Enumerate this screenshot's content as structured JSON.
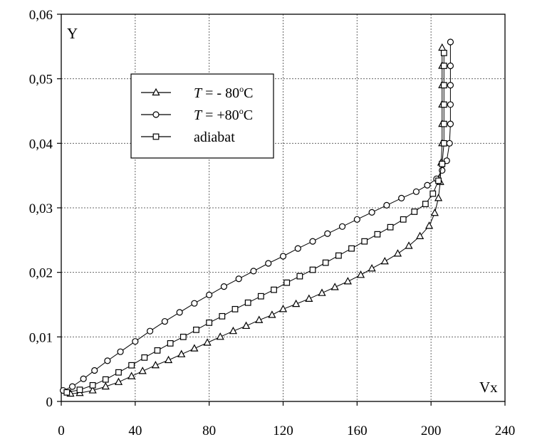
{
  "chart_data": {
    "type": "scatter",
    "title": "",
    "xlabel": "Vx",
    "ylabel": "Y",
    "xlim": [
      0,
      240
    ],
    "ylim": [
      0,
      0.06
    ],
    "x_ticks": [
      0,
      40,
      80,
      120,
      160,
      200,
      240
    ],
    "y_ticks": [
      0,
      0.01,
      0.02,
      0.03,
      0.04,
      0.05,
      0.06
    ],
    "x_tick_labels": [
      "0",
      "40",
      "80",
      "120",
      "160",
      "200",
      "240"
    ],
    "y_tick_labels": [
      "0",
      "0,01",
      "0,02",
      "0,03",
      "0,04",
      "0,05",
      "0,06"
    ],
    "grid": true,
    "legend_position": "upper-left",
    "series": [
      {
        "name": "T = - 80°C",
        "legend_italic": "T",
        "legend_rest": " = - 80",
        "legend_degree": "o",
        "legend_unit": "C",
        "marker": "triangle",
        "points": [
          [
            5,
            0.0012
          ],
          [
            10,
            0.0013
          ],
          [
            17,
            0.0017
          ],
          [
            24,
            0.0023
          ],
          [
            31,
            0.003
          ],
          [
            38,
            0.0039
          ],
          [
            44,
            0.0047
          ],
          [
            51,
            0.0056
          ],
          [
            58,
            0.0064
          ],
          [
            65,
            0.0073
          ],
          [
            72,
            0.0082
          ],
          [
            79,
            0.0091
          ],
          [
            86,
            0.01
          ],
          [
            93,
            0.0109
          ],
          [
            100,
            0.0117
          ],
          [
            107,
            0.0126
          ],
          [
            114,
            0.0134
          ],
          [
            120,
            0.0143
          ],
          [
            127,
            0.0151
          ],
          [
            134,
            0.0159
          ],
          [
            141,
            0.0168
          ],
          [
            148,
            0.0177
          ],
          [
            155,
            0.0186
          ],
          [
            162,
            0.0196
          ],
          [
            168,
            0.0206
          ],
          [
            175,
            0.0217
          ],
          [
            182,
            0.0229
          ],
          [
            188,
            0.0241
          ],
          [
            194,
            0.0256
          ],
          [
            199,
            0.0272
          ],
          [
            202,
            0.0292
          ],
          [
            204,
            0.0315
          ],
          [
            205,
            0.034
          ],
          [
            205.5,
            0.037
          ],
          [
            206,
            0.04
          ],
          [
            206,
            0.043
          ],
          [
            206,
            0.046
          ],
          [
            206,
            0.049
          ],
          [
            206,
            0.052
          ],
          [
            206,
            0.0548
          ]
        ]
      },
      {
        "name": "T = +80°C",
        "legend_italic": "T",
        "legend_rest": " = +80",
        "legend_degree": "o",
        "legend_unit": "C",
        "marker": "circle",
        "points": [
          [
            1,
            0.0017
          ],
          [
            6,
            0.0023
          ],
          [
            12,
            0.0035
          ],
          [
            18,
            0.0048
          ],
          [
            25,
            0.0063
          ],
          [
            32,
            0.0077
          ],
          [
            40,
            0.0093
          ],
          [
            48,
            0.0109
          ],
          [
            56,
            0.0124
          ],
          [
            64,
            0.0138
          ],
          [
            72,
            0.0152
          ],
          [
            80,
            0.0165
          ],
          [
            88,
            0.0178
          ],
          [
            96,
            0.019
          ],
          [
            104,
            0.0202
          ],
          [
            112,
            0.0214
          ],
          [
            120,
            0.0225
          ],
          [
            128,
            0.0237
          ],
          [
            136,
            0.0248
          ],
          [
            144,
            0.026
          ],
          [
            152,
            0.0271
          ],
          [
            160,
            0.0282
          ],
          [
            168,
            0.0293
          ],
          [
            176,
            0.0304
          ],
          [
            184,
            0.0315
          ],
          [
            192,
            0.0325
          ],
          [
            198,
            0.0335
          ],
          [
            203,
            0.0345
          ],
          [
            206,
            0.0358
          ],
          [
            208.5,
            0.0373
          ],
          [
            210,
            0.04
          ],
          [
            210.5,
            0.043
          ],
          [
            210.5,
            0.046
          ],
          [
            210.5,
            0.049
          ],
          [
            210.5,
            0.052
          ],
          [
            210.5,
            0.0557
          ]
        ]
      },
      {
        "name": "adiabat",
        "legend_italic": "",
        "legend_rest": "adiabat",
        "legend_degree": "",
        "legend_unit": "",
        "marker": "square",
        "points": [
          [
            3,
            0.0014
          ],
          [
            10,
            0.0018
          ],
          [
            17,
            0.0025
          ],
          [
            24,
            0.0034
          ],
          [
            31,
            0.0045
          ],
          [
            38,
            0.0056
          ],
          [
            45,
            0.0068
          ],
          [
            52,
            0.0079
          ],
          [
            59,
            0.009
          ],
          [
            66,
            0.01
          ],
          [
            73,
            0.0111
          ],
          [
            80,
            0.0122
          ],
          [
            87,
            0.0132
          ],
          [
            94,
            0.0143
          ],
          [
            101,
            0.0153
          ],
          [
            108,
            0.0163
          ],
          [
            115,
            0.0173
          ],
          [
            122,
            0.0184
          ],
          [
            129,
            0.0194
          ],
          [
            136,
            0.0204
          ],
          [
            143,
            0.0215
          ],
          [
            150,
            0.0226
          ],
          [
            157,
            0.0237
          ],
          [
            164,
            0.0248
          ],
          [
            171,
            0.0259
          ],
          [
            178,
            0.027
          ],
          [
            185,
            0.0282
          ],
          [
            191,
            0.0294
          ],
          [
            197,
            0.0306
          ],
          [
            201,
            0.0322
          ],
          [
            204,
            0.0342
          ],
          [
            206,
            0.0368
          ],
          [
            207,
            0.04
          ],
          [
            207,
            0.043
          ],
          [
            207,
            0.046
          ],
          [
            207,
            0.049
          ],
          [
            207,
            0.052
          ],
          [
            207,
            0.054
          ]
        ]
      }
    ]
  }
}
